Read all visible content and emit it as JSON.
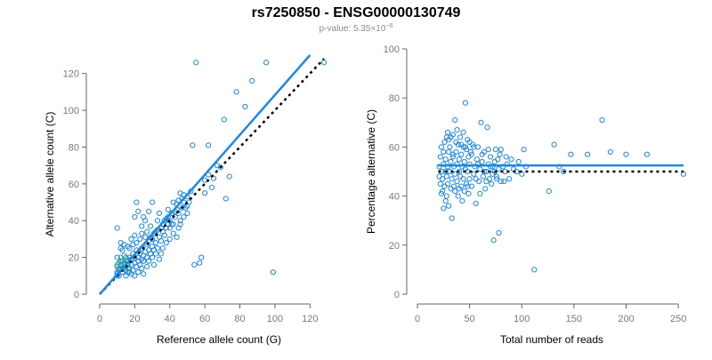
{
  "header": {
    "title": "rs7250850 - ENSG00000130749",
    "pvalue_prefix": "p-value: 5.35×10",
    "pvalue_exponent": "−6"
  },
  "chart_data": [
    {
      "type": "scatter",
      "xlabel": "Reference allele count (G)",
      "ylabel": "Alternative allele count (C)",
      "xlim": [
        0,
        130
      ],
      "ylim": [
        0,
        130
      ],
      "xticks": [
        0,
        20,
        40,
        60,
        80,
        100,
        120
      ],
      "yticks": [
        0,
        20,
        40,
        60,
        80,
        100,
        120
      ],
      "grid": false,
      "point_color": "#1f86d6",
      "dense_point_color": "#2ea888",
      "points": [
        [
          10,
          10
        ],
        [
          10,
          11
        ],
        [
          10,
          12
        ],
        [
          11,
          10
        ],
        [
          11,
          13
        ],
        [
          11,
          14
        ],
        [
          10,
          15
        ],
        [
          12,
          16
        ],
        [
          12,
          18
        ],
        [
          13,
          12
        ],
        [
          13,
          14
        ],
        [
          14,
          17
        ],
        [
          15,
          10
        ],
        [
          15,
          13
        ],
        [
          15,
          20
        ],
        [
          16,
          16
        ],
        [
          16,
          18
        ],
        [
          17,
          12
        ],
        [
          17,
          14
        ],
        [
          17,
          20
        ],
        [
          18,
          16
        ],
        [
          18,
          19
        ],
        [
          19,
          13
        ],
        [
          19,
          22
        ],
        [
          20,
          17
        ],
        [
          20,
          20
        ],
        [
          21,
          15
        ],
        [
          21,
          24
        ],
        [
          22,
          18
        ],
        [
          22,
          20
        ],
        [
          23,
          22
        ],
        [
          23,
          16
        ],
        [
          24,
          19
        ],
        [
          24,
          25
        ],
        [
          25,
          21
        ],
        [
          25,
          18
        ],
        [
          26,
          23
        ],
        [
          27,
          20
        ],
        [
          27,
          27
        ],
        [
          28,
          24
        ],
        [
          29,
          22
        ],
        [
          30,
          26
        ],
        [
          30,
          30
        ],
        [
          31,
          24
        ],
        [
          32,
          28
        ],
        [
          33,
          25
        ],
        [
          34,
          31
        ],
        [
          35,
          29
        ],
        [
          36,
          34
        ],
        [
          37,
          32
        ],
        [
          38,
          36
        ],
        [
          39,
          38
        ],
        [
          40,
          40
        ],
        [
          42,
          38
        ],
        [
          43,
          42
        ],
        [
          44,
          46
        ],
        [
          45,
          44
        ],
        [
          46,
          40
        ],
        [
          48,
          50
        ],
        [
          50,
          48
        ],
        [
          10,
          20
        ],
        [
          12,
          25
        ],
        [
          14,
          27
        ],
        [
          10,
          36
        ],
        [
          12,
          28
        ],
        [
          13,
          24
        ],
        [
          16,
          26
        ],
        [
          18,
          30
        ],
        [
          20,
          32
        ],
        [
          20,
          42
        ],
        [
          21,
          50
        ],
        [
          22,
          45
        ],
        [
          24,
          37
        ],
        [
          25,
          42
        ],
        [
          26,
          40
        ],
        [
          28,
          45
        ],
        [
          29,
          37
        ],
        [
          30,
          50
        ],
        [
          32,
          34
        ],
        [
          33,
          40
        ],
        [
          34,
          44
        ],
        [
          36,
          38
        ],
        [
          38,
          41
        ],
        [
          39,
          46
        ],
        [
          40,
          36
        ],
        [
          41,
          44
        ],
        [
          42,
          50
        ],
        [
          44,
          49
        ],
        [
          45,
          51
        ],
        [
          46,
          55
        ],
        [
          47,
          47
        ],
        [
          48,
          54
        ],
        [
          50,
          53
        ],
        [
          16,
          12
        ],
        [
          18,
          11
        ],
        [
          20,
          10
        ],
        [
          22,
          12
        ],
        [
          24,
          14
        ],
        [
          25,
          11
        ],
        [
          27,
          15
        ],
        [
          28,
          18
        ],
        [
          30,
          20
        ],
        [
          31,
          16
        ],
        [
          32,
          22
        ],
        [
          34,
          19
        ],
        [
          35,
          22
        ],
        [
          36,
          25
        ],
        [
          38,
          28
        ],
        [
          40,
          30
        ],
        [
          42,
          33
        ],
        [
          44,
          31
        ],
        [
          45,
          36
        ],
        [
          46,
          38
        ],
        [
          48,
          42
        ],
        [
          50,
          44
        ],
        [
          17,
          25
        ],
        [
          19,
          27
        ],
        [
          21,
          28
        ],
        [
          23,
          30
        ],
        [
          24,
          33
        ],
        [
          26,
          31
        ],
        [
          27,
          34
        ],
        [
          28,
          29
        ],
        [
          29,
          31
        ],
        [
          31,
          33
        ],
        [
          33,
          35
        ],
        [
          35,
          36
        ],
        [
          37,
          40
        ],
        [
          39,
          42
        ],
        [
          41,
          38
        ],
        [
          43,
          45
        ],
        [
          47,
          52
        ],
        [
          49,
          47
        ],
        [
          51,
          50
        ],
        [
          52,
          56
        ],
        [
          53,
          81
        ],
        [
          54,
          16
        ],
        [
          57,
          17
        ],
        [
          58,
          20
        ],
        [
          55,
          126
        ],
        [
          60,
          62
        ],
        [
          62,
          81
        ],
        [
          65,
          63
        ],
        [
          67,
          70
        ],
        [
          69,
          69
        ],
        [
          71,
          95
        ],
        [
          72,
          52
        ],
        [
          74,
          64
        ],
        [
          78,
          110
        ],
        [
          83,
          102
        ],
        [
          87,
          116
        ],
        [
          95,
          126
        ],
        [
          99,
          12
        ],
        [
          128,
          126
        ],
        [
          60,
          55
        ],
        [
          62,
          65
        ],
        [
          64,
          58
        ]
      ],
      "dense_points": [
        [
          10,
          16
        ],
        [
          11,
          17
        ],
        [
          12,
          14
        ],
        [
          13,
          18
        ],
        [
          14,
          16
        ],
        [
          15,
          15
        ],
        [
          16,
          14
        ],
        [
          12,
          20
        ],
        [
          14,
          21
        ],
        [
          15,
          18
        ]
      ],
      "regression_line": {
        "x": [
          0,
          120
        ],
        "y": [
          0,
          130
        ]
      },
      "reference_line": {
        "x": [
          0,
          128
        ],
        "y": [
          0,
          128
        ]
      }
    },
    {
      "type": "scatter",
      "xlabel": "Total number of reads",
      "ylabel": "Percentage alternative (C)",
      "xlim": [
        0,
        255
      ],
      "ylim": [
        0,
        100
      ],
      "xticks": [
        0,
        50,
        100,
        150,
        200,
        250
      ],
      "yticks": [
        0,
        20,
        40,
        60,
        80,
        100
      ],
      "grid": false,
      "point_color": "#1f86d6",
      "points": [
        [
          21,
          48
        ],
        [
          21,
          52
        ],
        [
          22,
          45
        ],
        [
          22,
          56
        ],
        [
          23,
          50
        ],
        [
          23,
          60
        ],
        [
          24,
          42
        ],
        [
          24,
          47
        ],
        [
          25,
          53
        ],
        [
          25,
          58
        ],
        [
          26,
          44
        ],
        [
          26,
          62
        ],
        [
          27,
          50
        ],
        [
          27,
          55
        ],
        [
          28,
          40
        ],
        [
          28,
          48
        ],
        [
          28,
          64
        ],
        [
          29,
          52
        ],
        [
          29,
          45
        ],
        [
          30,
          58
        ],
        [
          30,
          36
        ],
        [
          31,
          50
        ],
        [
          31,
          60
        ],
        [
          32,
          43
        ],
        [
          32,
          54
        ],
        [
          33,
          31
        ],
        [
          33,
          47
        ],
        [
          34,
          65
        ],
        [
          34,
          56
        ],
        [
          35,
          52
        ],
        [
          35,
          44
        ],
        [
          36,
          71
        ],
        [
          36,
          49
        ],
        [
          37,
          58
        ],
        [
          37,
          62
        ],
        [
          38,
          46
        ],
        [
          38,
          53
        ],
        [
          39,
          40
        ],
        [
          39,
          61
        ],
        [
          40,
          55
        ],
        [
          40,
          50
        ],
        [
          41,
          48
        ],
        [
          41,
          64
        ],
        [
          42,
          44
        ],
        [
          42,
          57
        ],
        [
          43,
          52
        ],
        [
          43,
          38
        ],
        [
          44,
          60
        ],
        [
          44,
          47
        ],
        [
          45,
          54
        ],
        [
          45,
          42
        ],
        [
          46,
          78
        ],
        [
          46,
          51
        ],
        [
          47,
          59
        ],
        [
          47,
          45
        ],
        [
          48,
          50
        ],
        [
          48,
          63
        ],
        [
          49,
          56
        ],
        [
          49,
          41
        ],
        [
          50,
          53
        ],
        [
          50,
          47
        ],
        [
          51,
          58
        ],
        [
          52,
          44
        ],
        [
          53,
          61
        ],
        [
          54,
          49
        ],
        [
          55,
          52
        ],
        [
          56,
          37
        ],
        [
          57,
          55
        ],
        [
          58,
          60
        ],
        [
          59,
          46
        ],
        [
          60,
          51
        ],
        [
          61,
          70
        ],
        [
          62,
          54
        ],
        [
          63,
          48
        ],
        [
          64,
          58
        ],
        [
          65,
          43
        ],
        [
          66,
          50
        ],
        [
          67,
          68
        ],
        [
          68,
          53
        ],
        [
          69,
          47
        ],
        [
          70,
          56
        ],
        [
          71,
          45
        ],
        [
          72,
          52
        ],
        [
          73,
          22
        ],
        [
          74,
          50
        ],
        [
          75,
          59
        ],
        [
          76,
          48
        ],
        [
          77,
          55
        ],
        [
          78,
          25
        ],
        [
          79,
          57
        ],
        [
          80,
          46
        ],
        [
          82,
          52
        ],
        [
          84,
          50
        ],
        [
          86,
          53
        ],
        [
          88,
          47
        ],
        [
          90,
          55
        ],
        [
          92,
          51
        ],
        [
          95,
          50
        ],
        [
          97,
          54
        ],
        [
          100,
          49
        ],
        [
          102,
          59
        ],
        [
          104,
          52
        ],
        [
          112,
          10
        ],
        [
          126,
          42
        ],
        [
          131,
          61
        ],
        [
          136,
          52
        ],
        [
          140,
          50
        ],
        [
          147,
          57
        ],
        [
          163,
          57
        ],
        [
          177,
          71
        ],
        [
          185,
          58
        ],
        [
          200,
          57
        ],
        [
          220,
          57
        ],
        [
          255,
          49
        ],
        [
          23,
          41
        ],
        [
          25,
          35
        ],
        [
          27,
          38
        ],
        [
          29,
          66
        ],
        [
          30,
          63
        ],
        [
          32,
          64
        ],
        [
          34,
          57
        ],
        [
          36,
          42
        ],
        [
          38,
          67
        ],
        [
          40,
          43
        ],
        [
          42,
          61
        ],
        [
          44,
          66
        ],
        [
          46,
          60
        ],
        [
          48,
          44
        ],
        [
          50,
          62
        ],
        [
          52,
          57
        ],
        [
          54,
          60
        ],
        [
          56,
          47
        ],
        [
          58,
          53
        ],
        [
          60,
          41
        ],
        [
          62,
          57
        ],
        [
          64,
          50
        ],
        [
          66,
          46
        ],
        [
          68,
          59
        ],
        [
          70,
          52
        ],
        [
          72,
          49
        ],
        [
          74,
          54
        ],
        [
          76,
          47
        ],
        [
          78,
          51
        ],
        [
          80,
          59
        ],
        [
          83,
          46
        ],
        [
          85,
          56
        ]
      ],
      "regression_line": {
        "x": [
          20,
          255
        ],
        "y": [
          52.5,
          52.5
        ]
      },
      "reference_line": {
        "x": [
          20,
          255
        ],
        "y": [
          50,
          50
        ]
      }
    }
  ]
}
